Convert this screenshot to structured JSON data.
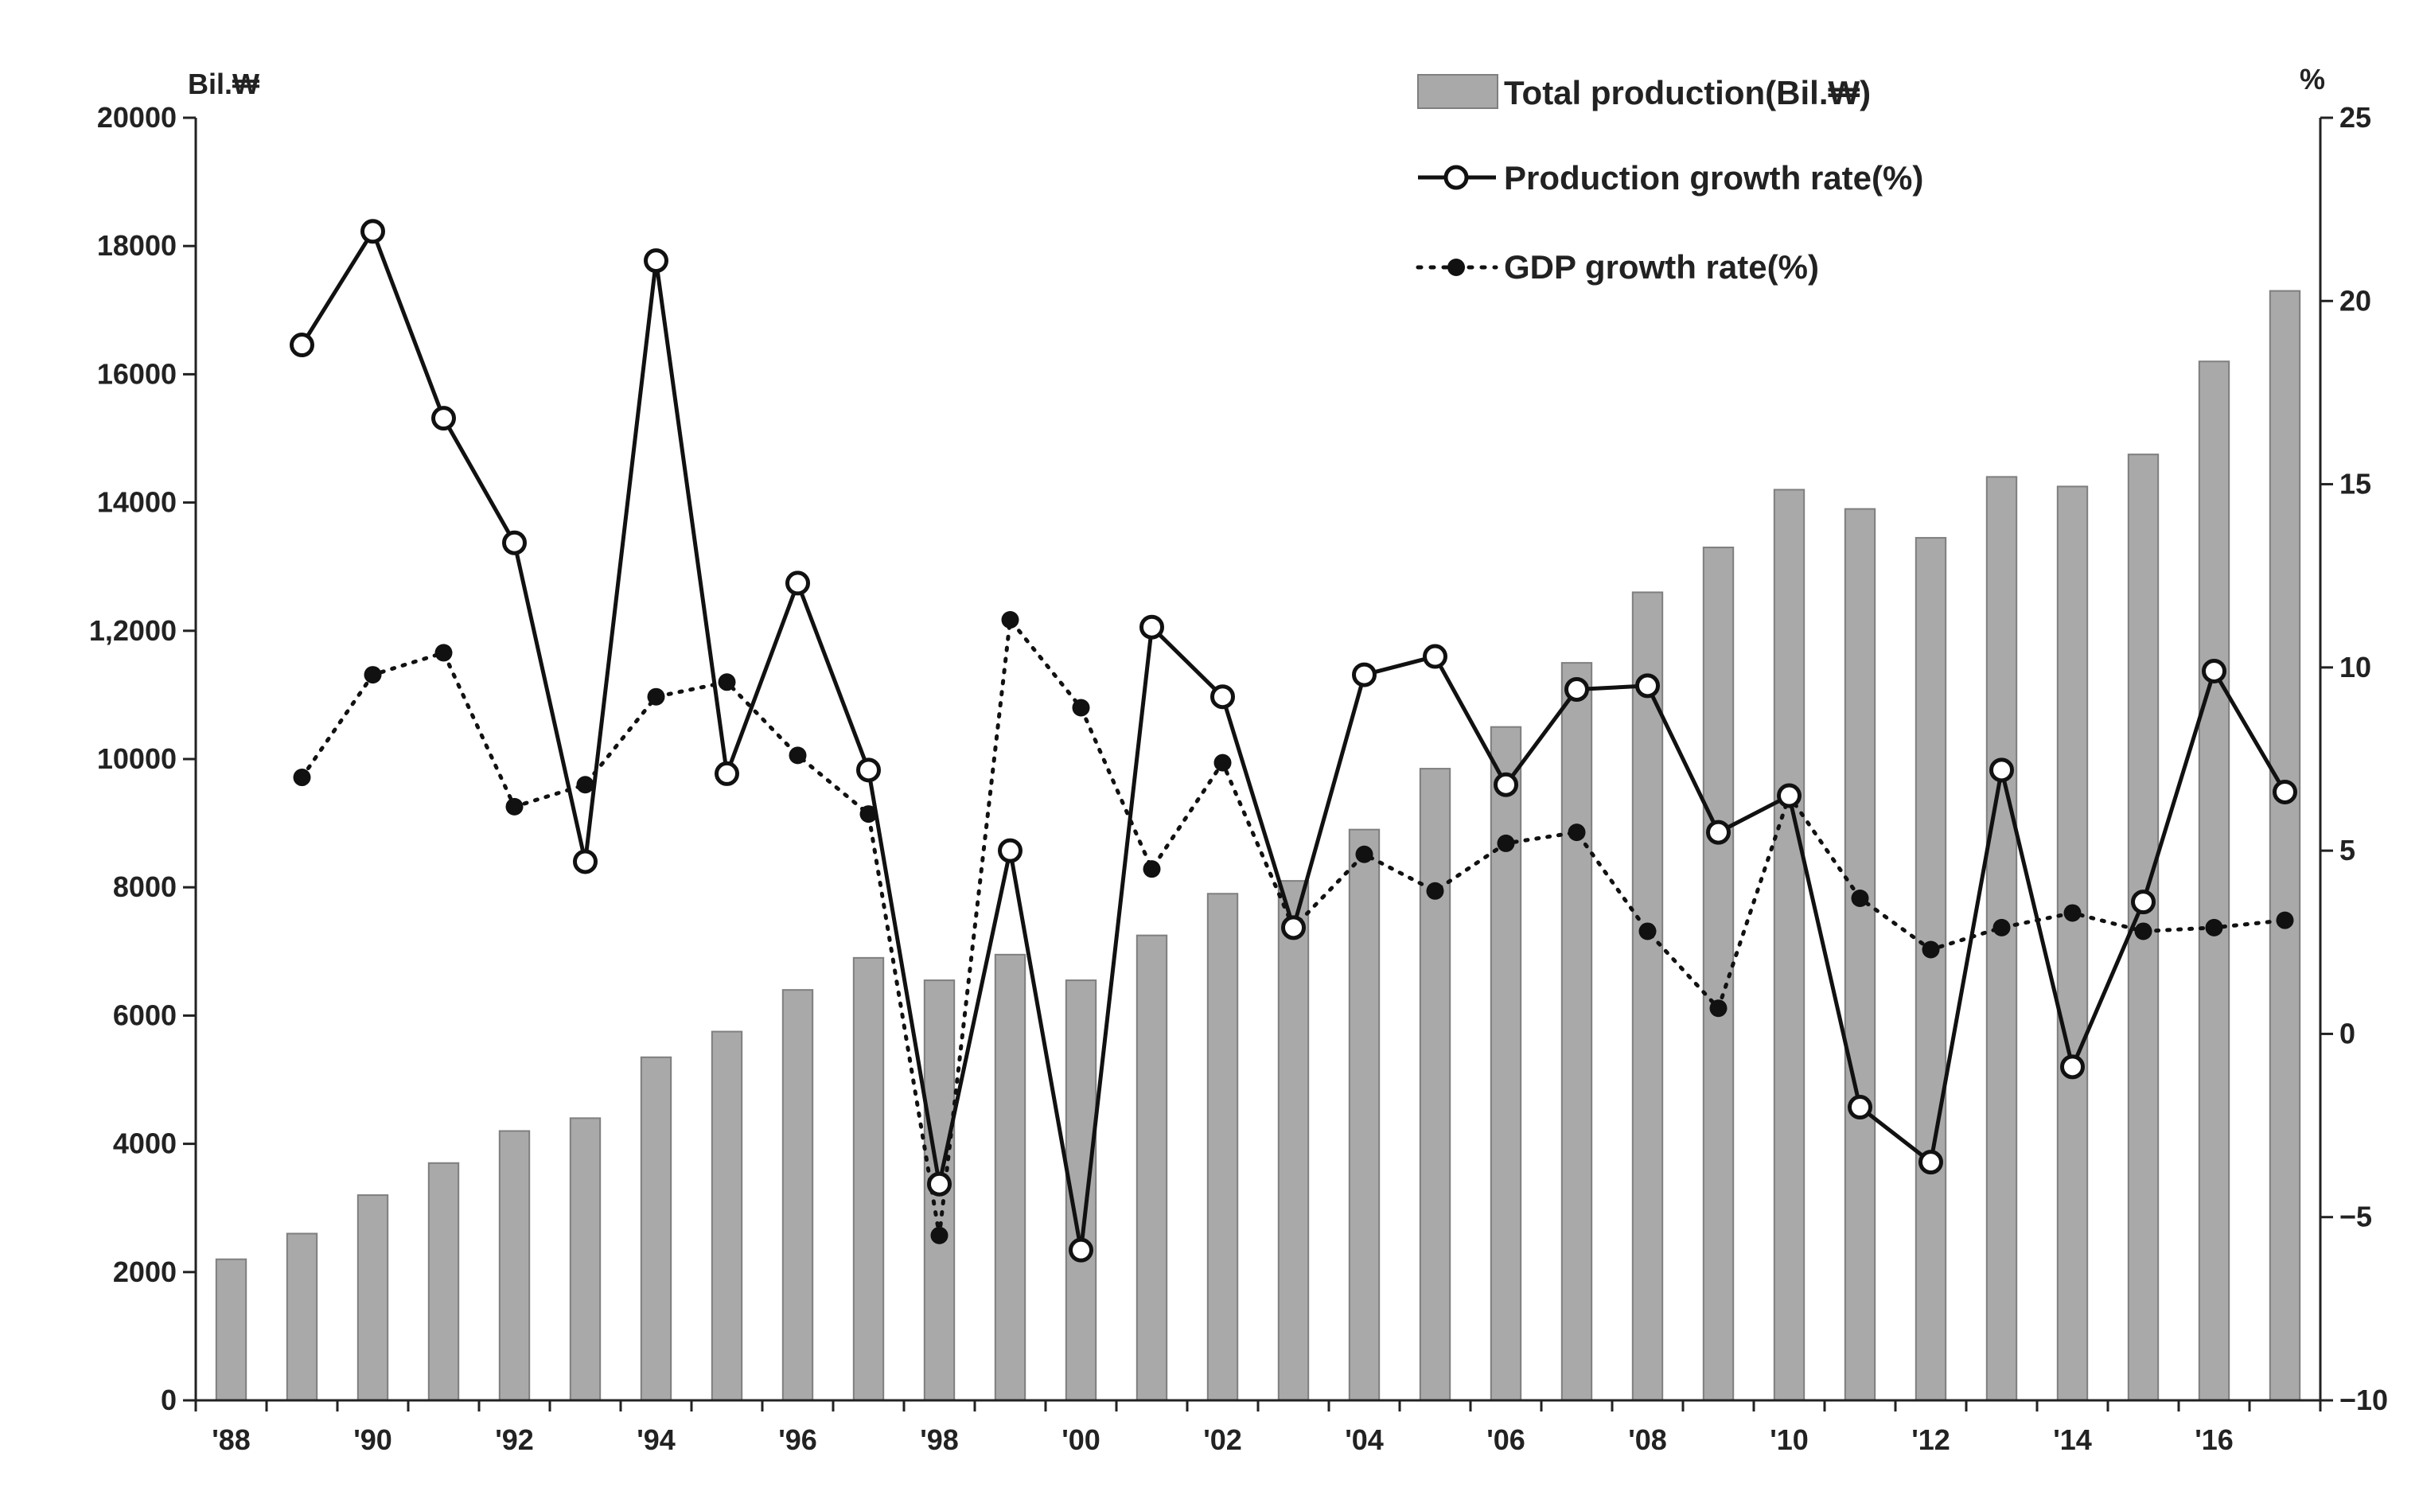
{
  "chart_data": {
    "type": "bar+line",
    "categories": [
      "'88",
      "'89",
      "'90",
      "'91",
      "'92",
      "'93",
      "'94",
      "'95",
      "'96",
      "'97",
      "'98",
      "'99",
      "'00",
      "'01",
      "'02",
      "'03",
      "'04",
      "'05",
      "'06",
      "'07",
      "'08",
      "'09",
      "'10",
      "'11",
      "'12",
      "'13",
      "'14",
      "'15",
      "'16",
      "'17"
    ],
    "x_tick_labels": [
      "'88",
      "",
      "'90",
      "",
      "'92",
      "",
      "'94",
      "",
      "'96",
      "",
      "'98",
      "",
      "'00",
      "",
      "'02",
      "",
      "'04",
      "",
      "'06",
      "",
      "'08",
      "",
      "'10",
      "",
      "'12",
      "",
      "'14",
      "",
      "'16",
      ""
    ],
    "left_axis": {
      "unit": "Bil.₩",
      "ylim": [
        0,
        20000
      ],
      "tick_labels": [
        "0",
        "2000",
        "4000",
        "6000",
        "8000",
        "10000",
        "1,2000",
        "14000",
        "16000",
        "18000",
        "20000"
      ]
    },
    "right_axis": {
      "unit": "%",
      "ylim": [
        -10,
        25
      ],
      "tick_labels": [
        "−10",
        "−5",
        "0",
        "5",
        "10",
        "15",
        "20",
        "25"
      ]
    },
    "legend": {
      "total_production": "Total production(Bil.₩)",
      "production_growth": "Production growth rate(%)",
      "gdp_growth": "GDP growth rate(%)"
    },
    "series": [
      {
        "name": "Total production(Bil.₩)",
        "type": "bar",
        "axis": "left",
        "values": [
          2200,
          2600,
          3200,
          3700,
          4200,
          4400,
          5350,
          5750,
          6400,
          6900,
          6550,
          6950,
          6550,
          7250,
          7900,
          8100,
          8900,
          9850,
          10500,
          11500,
          12600,
          13300,
          14200,
          13900,
          13450,
          14400,
          14250,
          14750,
          16200,
          17300
        ]
      },
      {
        "name": "Production growth rate(%)",
        "type": "line",
        "axis": "right",
        "values": [
          null,
          18.8,
          21.9,
          16.8,
          13.4,
          4.7,
          21.1,
          7.1,
          12.3,
          7.2,
          -4.1,
          5.0,
          -5.9,
          11.1,
          9.2,
          2.9,
          9.8,
          10.3,
          6.8,
          9.4,
          9.5,
          5.5,
          6.5,
          -2.0,
          -3.5,
          7.2,
          -0.9,
          3.6,
          9.9,
          6.6
        ]
      },
      {
        "name": "GDP growth rate(%)",
        "type": "line",
        "axis": "right",
        "values": [
          null,
          7.0,
          9.8,
          10.4,
          6.2,
          6.8,
          9.2,
          9.6,
          7.6,
          6.0,
          -5.5,
          11.3,
          8.9,
          4.5,
          7.4,
          2.9,
          4.9,
          3.9,
          5.2,
          5.5,
          2.8,
          0.7,
          6.5,
          3.7,
          2.3,
          2.9,
          3.3,
          2.8,
          2.9,
          3.1
        ]
      }
    ]
  },
  "colors": {
    "bar_fill": "#a9a9a9",
    "bar_stroke": "#7f7f7f",
    "axis": "#222222",
    "line": "#111111",
    "marker_open": "#ffffff"
  }
}
